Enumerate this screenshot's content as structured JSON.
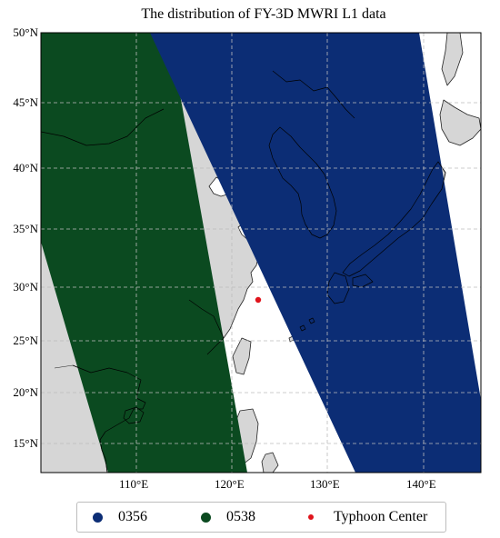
{
  "title": "The distribution of FY-3D MWRI L1 data",
  "colors": {
    "swath_0356": "#0c2d75",
    "swath_0538": "#0b4a20",
    "typhoon": "#e0141c",
    "land": "#d6d6d6",
    "water": "#ffffff",
    "grid": "#bdbdbd"
  },
  "map": {
    "lon_range": [
      100,
      146
    ],
    "lat_range": [
      12.5,
      50
    ],
    "lon_ticks": [
      "110°E",
      "120°E",
      "130°E",
      "140°E"
    ],
    "lat_ticks": [
      "15°N",
      "20°N",
      "25°N",
      "30°N",
      "35°N",
      "40°N",
      "45°N",
      "50°N"
    ],
    "grid": true
  },
  "chart_data": {
    "type": "map",
    "title": "The distribution of FY-3D MWRI L1 data",
    "swaths": [
      {
        "name": "0356",
        "color": "#0c2d75",
        "polygon": [
          [
            117.5,
            50
          ],
          [
            139.3,
            50
          ],
          [
            146,
            20
          ],
          [
            146,
            12.5
          ],
          [
            133.0,
            12.5
          ],
          [
            111.8,
            50
          ]
        ]
      },
      {
        "name": "0538",
        "color": "#0b4a20",
        "polygon": [
          [
            100,
            50
          ],
          [
            113.1,
            50
          ],
          [
            121.1,
            12.5
          ],
          [
            107.2,
            12.5
          ],
          [
            100,
            34.4
          ]
        ]
      }
    ],
    "points": [
      {
        "name": "Typhoon Center",
        "lon": 122.1,
        "lat": 28.8,
        "color": "#e0141c"
      }
    ]
  },
  "legend": {
    "items": [
      {
        "label": "0356",
        "color": "#0c2d75"
      },
      {
        "label": "0538",
        "color": "#0b4a20"
      },
      {
        "label": "Typhoon Center",
        "color": "#e0141c"
      }
    ]
  }
}
